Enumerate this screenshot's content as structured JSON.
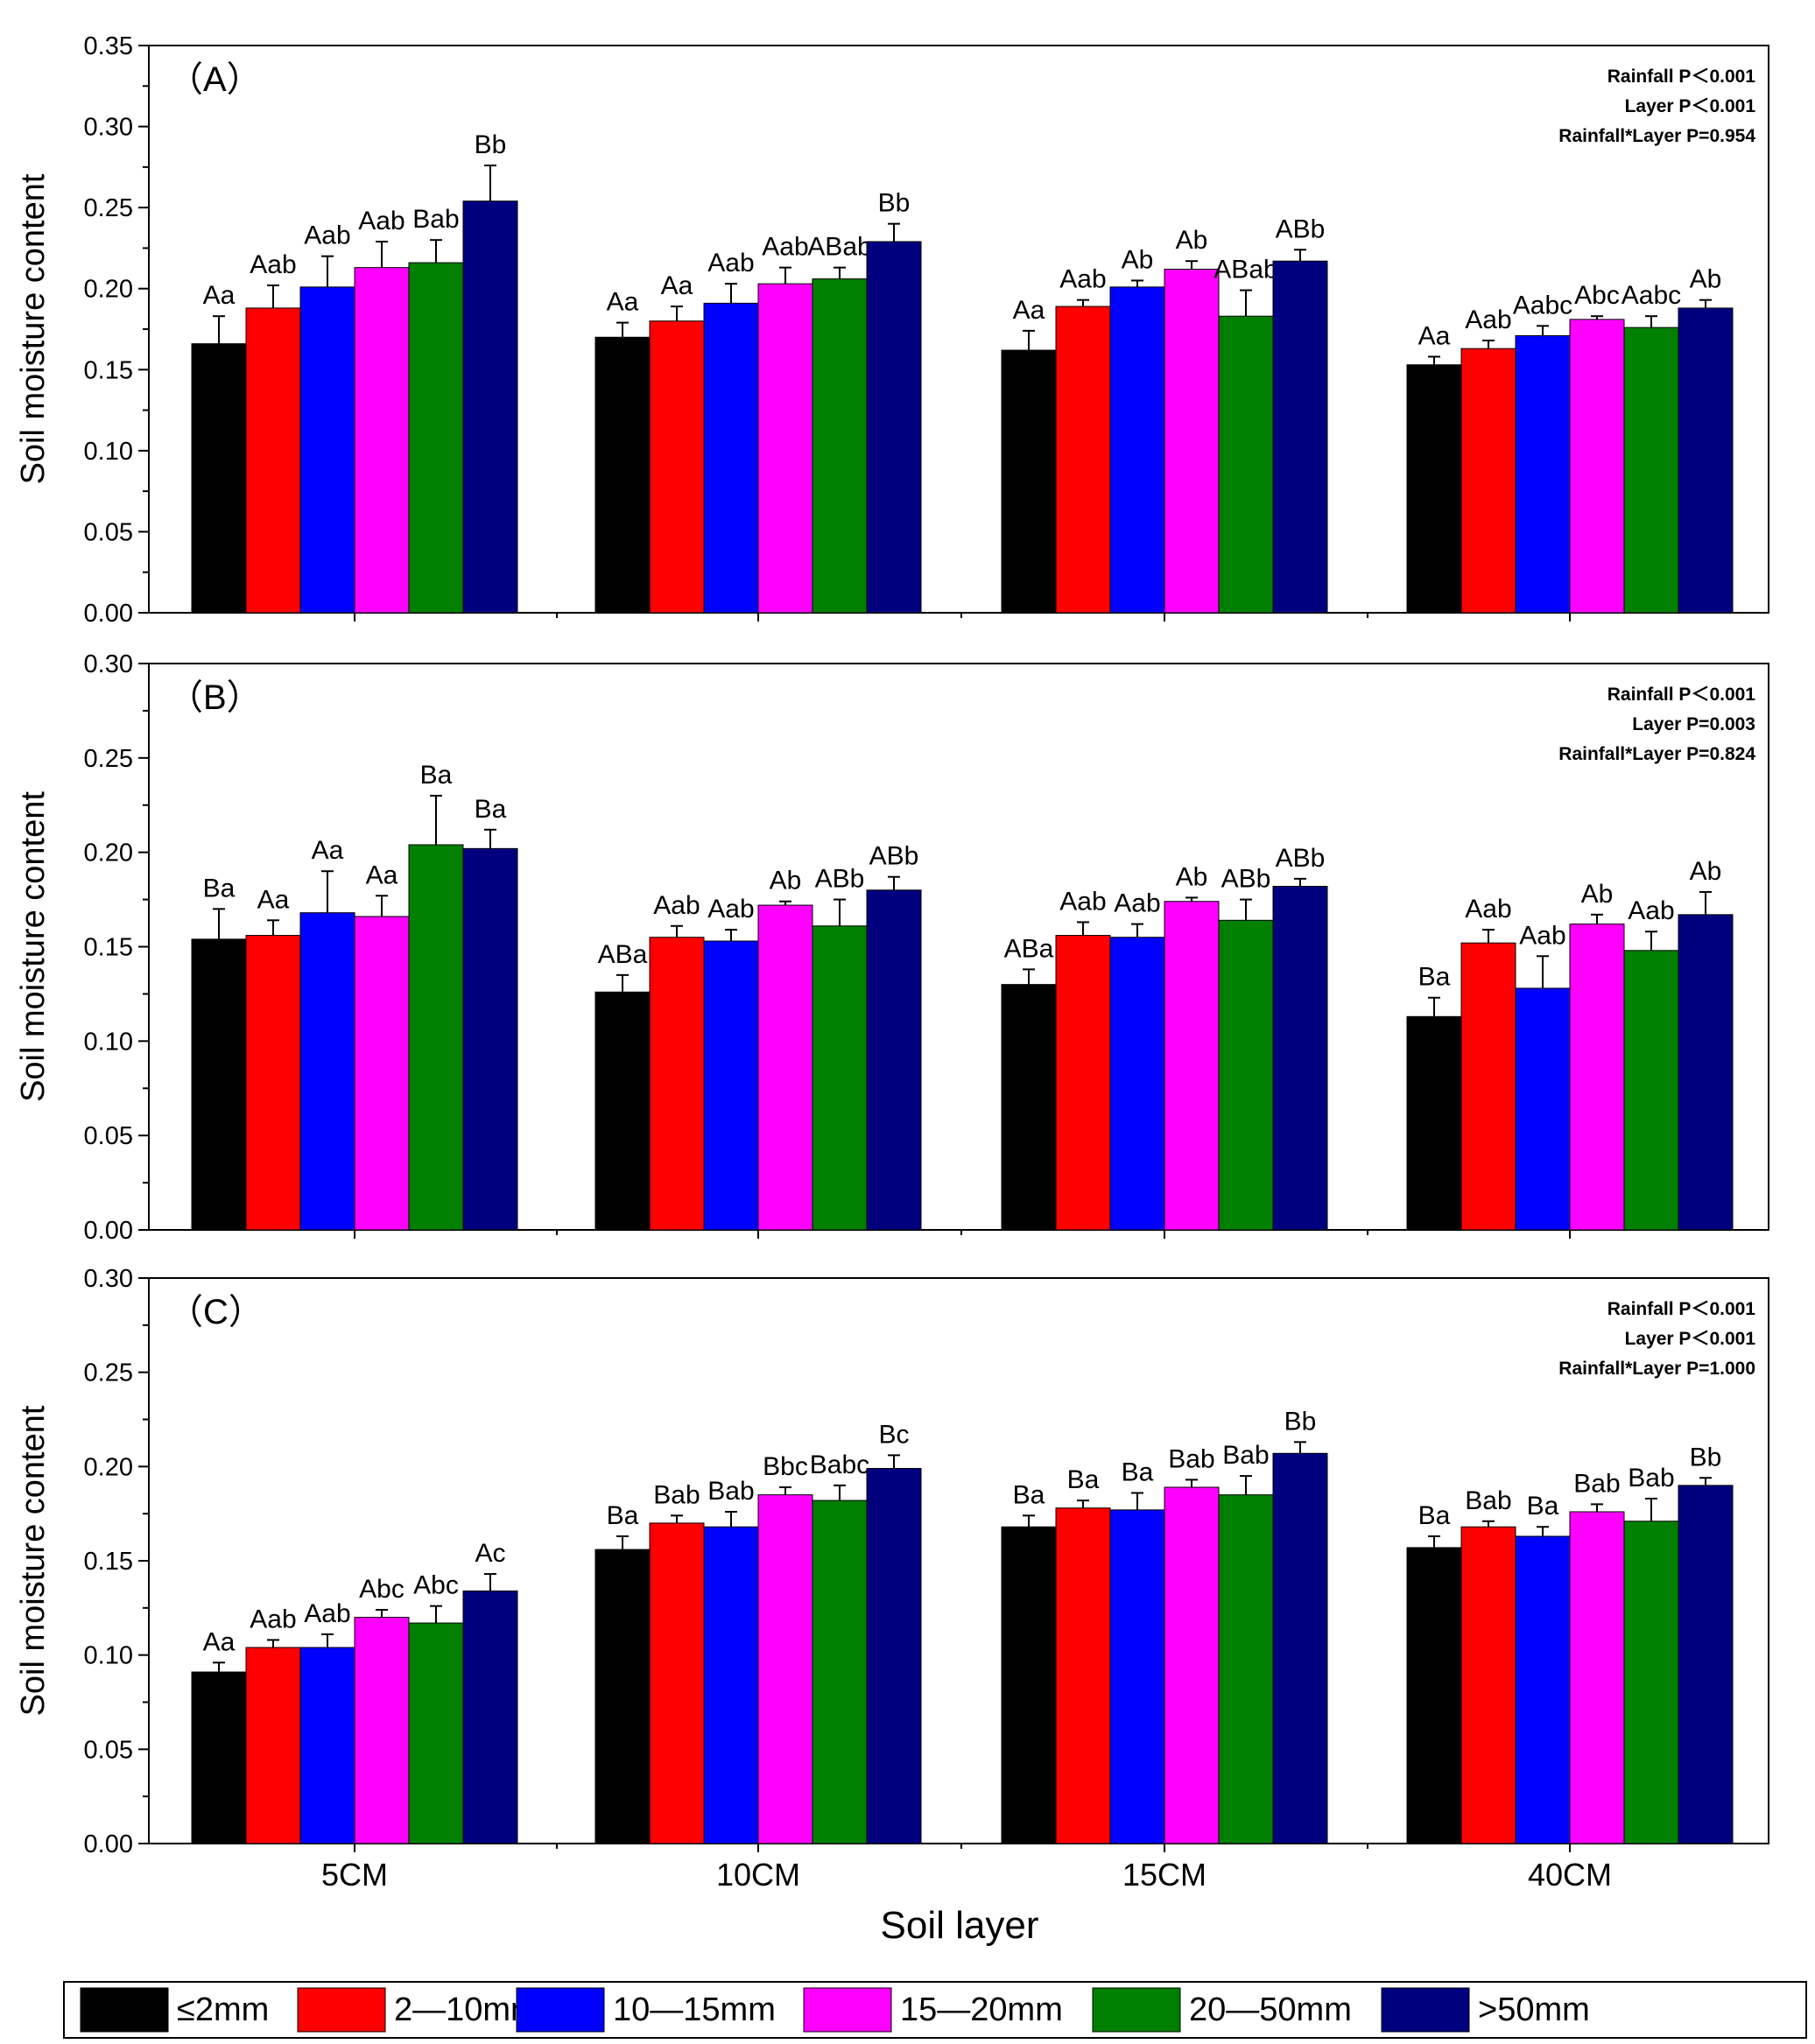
{
  "figure": {
    "x_axis_title": "Soil layer",
    "layers": [
      "5CM",
      "10CM",
      "15CM",
      "40CM"
    ],
    "legend": [
      {
        "label": "≤2mm",
        "color": "#000000"
      },
      {
        "label": "2—10mm",
        "color": "#ff0000"
      },
      {
        "label": "10—15mm",
        "color": "#0000ff"
      },
      {
        "label": "15—20mm",
        "color": "#ff00ff"
      },
      {
        "label": "20—50mm",
        "color": "#007f00"
      },
      {
        "label": ">50mm",
        "color": "#00007f"
      }
    ]
  },
  "chart_data": [
    {
      "type": "bar",
      "panel_label": "（A）",
      "ylabel": "Soil moisture content",
      "ylim": [
        0,
        0.35
      ],
      "yticks": [
        "0.00",
        "0.05",
        "0.10",
        "0.15",
        "0.20",
        "0.25",
        "0.30",
        "0.35"
      ],
      "stats": [
        "Rainfall P＜0.001",
        "Layer P＜0.001",
        "Rainfall*Layer P=0.954"
      ],
      "categories": [
        "5CM",
        "10CM",
        "15CM",
        "40CM"
      ],
      "series": [
        {
          "name": "≤2mm",
          "values": [
            0.166,
            0.17,
            0.162,
            0.153
          ],
          "errors": [
            0.017,
            0.009,
            0.012,
            0.005
          ],
          "labels": [
            "Aa",
            "Aa",
            "Aa",
            "Aa"
          ]
        },
        {
          "name": "2—10mm",
          "values": [
            0.188,
            0.18,
            0.189,
            0.163
          ],
          "errors": [
            0.014,
            0.009,
            0.004,
            0.005
          ],
          "labels": [
            "Aab",
            "Aa",
            "Aab",
            "Aab"
          ]
        },
        {
          "name": "10—15mm",
          "values": [
            0.201,
            0.191,
            0.201,
            0.171
          ],
          "errors": [
            0.019,
            0.012,
            0.004,
            0.006
          ],
          "labels": [
            "Aab",
            "Aab",
            "Ab",
            "Aabc"
          ]
        },
        {
          "name": "15—20mm",
          "values": [
            0.213,
            0.203,
            0.212,
            0.181
          ],
          "errors": [
            0.016,
            0.01,
            0.005,
            0.002
          ],
          "labels": [
            "Aab",
            "Aab",
            "Ab",
            "Abc"
          ]
        },
        {
          "name": "20—50mm",
          "values": [
            0.216,
            0.206,
            0.183,
            0.176
          ],
          "errors": [
            0.014,
            0.007,
            0.016,
            0.007
          ],
          "labels": [
            "Bab",
            "ABab",
            "ABab",
            "Aabc"
          ]
        },
        {
          "name": ">50mm",
          "values": [
            0.254,
            0.229,
            0.217,
            0.188
          ],
          "errors": [
            0.022,
            0.011,
            0.007,
            0.005
          ],
          "labels": [
            "Bb",
            "Bb",
            "ABb",
            "Ab"
          ]
        }
      ]
    },
    {
      "type": "bar",
      "panel_label": "（B）",
      "ylabel": "Soil moisture content",
      "ylim": [
        0,
        0.3
      ],
      "yticks": [
        "0.00",
        "0.05",
        "0.10",
        "0.15",
        "0.20",
        "0.25",
        "0.30"
      ],
      "stats": [
        "Rainfall P＜0.001",
        "Layer P=0.003",
        "Rainfall*Layer P=0.824"
      ],
      "categories": [
        "5CM",
        "10CM",
        "15CM",
        "40CM"
      ],
      "series": [
        {
          "name": "≤2mm",
          "values": [
            0.154,
            0.126,
            0.13,
            0.113
          ],
          "errors": [
            0.016,
            0.009,
            0.008,
            0.01
          ],
          "labels": [
            "Ba",
            "ABa",
            "ABa",
            "Ba"
          ]
        },
        {
          "name": "2—10mm",
          "values": [
            0.156,
            0.155,
            0.156,
            0.152
          ],
          "errors": [
            0.008,
            0.006,
            0.007,
            0.007
          ],
          "labels": [
            "Aa",
            "Aab",
            "Aab",
            "Aab"
          ]
        },
        {
          "name": "10—15mm",
          "values": [
            0.168,
            0.153,
            0.155,
            0.128
          ],
          "errors": [
            0.022,
            0.006,
            0.007,
            0.017
          ],
          "labels": [
            "Aa",
            "Aab",
            "Aab",
            "Aab"
          ]
        },
        {
          "name": "15—20mm",
          "values": [
            0.166,
            0.172,
            0.174,
            0.162
          ],
          "errors": [
            0.011,
            0.002,
            0.002,
            0.005
          ],
          "labels": [
            "Aa",
            "Ab",
            "Ab",
            "Ab"
          ]
        },
        {
          "name": "20—50mm",
          "values": [
            0.204,
            0.161,
            0.164,
            0.148
          ],
          "errors": [
            0.026,
            0.014,
            0.011,
            0.01
          ],
          "labels": [
            "Ba",
            "ABb",
            "ABb",
            "Aab"
          ]
        },
        {
          "name": ">50mm",
          "values": [
            0.202,
            0.18,
            0.182,
            0.167
          ],
          "errors": [
            0.01,
            0.007,
            0.004,
            0.012
          ],
          "labels": [
            "Ba",
            "ABb",
            "ABb",
            "Ab"
          ]
        }
      ]
    },
    {
      "type": "bar",
      "panel_label": "（C）",
      "ylabel": "Soil moisture content",
      "ylim": [
        0,
        0.3
      ],
      "yticks": [
        "0.00",
        "0.05",
        "0.10",
        "0.15",
        "0.20",
        "0.25",
        "0.30"
      ],
      "stats": [
        "Rainfall P＜0.001",
        "Layer P＜0.001",
        "Rainfall*Layer P=1.000"
      ],
      "categories": [
        "5CM",
        "10CM",
        "15CM",
        "40CM"
      ],
      "series": [
        {
          "name": "≤2mm",
          "values": [
            0.091,
            0.156,
            0.168,
            0.157
          ],
          "errors": [
            0.005,
            0.007,
            0.006,
            0.006
          ],
          "labels": [
            "Aa",
            "Ba",
            "Ba",
            "Ba"
          ]
        },
        {
          "name": "2—10mm",
          "values": [
            0.104,
            0.17,
            0.178,
            0.168
          ],
          "errors": [
            0.004,
            0.004,
            0.004,
            0.003
          ],
          "labels": [
            "Aab",
            "Bab",
            "Ba",
            "Bab"
          ]
        },
        {
          "name": "10—15mm",
          "values": [
            0.104,
            0.168,
            0.177,
            0.163
          ],
          "errors": [
            0.007,
            0.008,
            0.009,
            0.005
          ],
          "labels": [
            "Aab",
            "Bab",
            "Ba",
            "Ba"
          ]
        },
        {
          "name": "15—20mm",
          "values": [
            0.12,
            0.185,
            0.189,
            0.176
          ],
          "errors": [
            0.004,
            0.004,
            0.004,
            0.004
          ],
          "labels": [
            "Abc",
            "Bbc",
            "Bab",
            "Bab"
          ]
        },
        {
          "name": "20—50mm",
          "values": [
            0.117,
            0.182,
            0.185,
            0.171
          ],
          "errors": [
            0.009,
            0.008,
            0.01,
            0.012
          ],
          "labels": [
            "Abc",
            "Babc",
            "Bab",
            "Bab"
          ]
        },
        {
          "name": ">50mm",
          "values": [
            0.134,
            0.199,
            0.207,
            0.19
          ],
          "errors": [
            0.009,
            0.007,
            0.006,
            0.004
          ],
          "labels": [
            "Ac",
            "Bc",
            "Bb",
            "Bb"
          ]
        }
      ]
    }
  ]
}
